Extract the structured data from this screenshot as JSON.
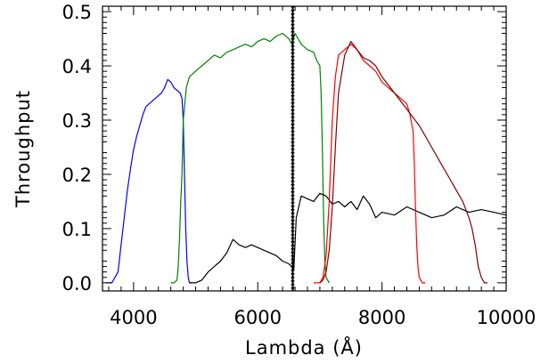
{
  "chart_data": {
    "type": "line",
    "title": "",
    "xlabel": "Lambda (Å)",
    "ylabel": "Throughput",
    "xlim": [
      3500,
      10000
    ],
    "ylim": [
      -0.015,
      0.51
    ],
    "xticks": [
      4000,
      6000,
      8000,
      10000
    ],
    "yticks": [
      0.0,
      0.1,
      0.2,
      0.3,
      0.4,
      0.5
    ],
    "xtick_labels": [
      "4000",
      "6000",
      "8000",
      "10000"
    ],
    "ytick_labels": [
      "0.0",
      "0.1",
      "0.2",
      "0.3",
      "0.4",
      "0.5"
    ],
    "grid": false,
    "legend": "none",
    "series": [
      {
        "color": "#0000ff",
        "x": [
          3550,
          3650,
          3750,
          3800,
          3850,
          3900,
          3950,
          4000,
          4050,
          4100,
          4150,
          4200,
          4250,
          4300,
          4350,
          4400,
          4450,
          4500,
          4550,
          4600,
          4650,
          4700,
          4750,
          4780,
          4800,
          4820,
          4840,
          4860,
          4880,
          4900,
          4950
        ],
        "y": [
          0.0,
          0.0,
          0.02,
          0.07,
          0.12,
          0.17,
          0.21,
          0.245,
          0.27,
          0.29,
          0.31,
          0.325,
          0.33,
          0.335,
          0.34,
          0.345,
          0.35,
          0.36,
          0.375,
          0.37,
          0.36,
          0.355,
          0.35,
          0.34,
          0.3,
          0.2,
          0.1,
          0.04,
          0.01,
          0.0,
          0.0
        ]
      },
      {
        "color": "#008000",
        "x": [
          4600,
          4650,
          4700,
          4720,
          4740,
          4760,
          4780,
          4800,
          4850,
          4900,
          5000,
          5100,
          5200,
          5300,
          5400,
          5500,
          5600,
          5700,
          5800,
          5900,
          6000,
          6100,
          6200,
          6300,
          6400,
          6500,
          6550,
          6600,
          6700,
          6800,
          6900,
          6950,
          7000,
          7020,
          7040,
          7060,
          7080,
          7100,
          7150
        ],
        "y": [
          0.0,
          0.0,
          0.005,
          0.03,
          0.08,
          0.15,
          0.2,
          0.3,
          0.36,
          0.38,
          0.39,
          0.4,
          0.41,
          0.42,
          0.415,
          0.425,
          0.43,
          0.435,
          0.44,
          0.435,
          0.445,
          0.45,
          0.445,
          0.455,
          0.46,
          0.45,
          0.44,
          0.46,
          0.44,
          0.43,
          0.425,
          0.41,
          0.4,
          0.35,
          0.25,
          0.12,
          0.04,
          0.01,
          0.0
        ]
      },
      {
        "color": "#000000",
        "x": [
          4900,
          5000,
          5100,
          5200,
          5300,
          5400,
          5500,
          5600,
          5700,
          5800,
          5900,
          6000,
          6100,
          6200,
          6300,
          6400,
          6500,
          6580,
          6620,
          6650,
          6700,
          6800,
          6900,
          7000,
          7100,
          7200,
          7300,
          7400,
          7500,
          7600,
          7700,
          7800,
          7900,
          8000,
          8200,
          8400,
          8600,
          8800,
          9000,
          9200,
          9400,
          9600,
          9800,
          10000
        ],
        "y": [
          0.0,
          0.0,
          0.005,
          0.02,
          0.03,
          0.04,
          0.055,
          0.08,
          0.07,
          0.065,
          0.07,
          0.065,
          0.06,
          0.055,
          0.05,
          0.04,
          0.035,
          0.025,
          0.12,
          0.135,
          0.16,
          0.155,
          0.15,
          0.165,
          0.16,
          0.145,
          0.15,
          0.14,
          0.15,
          0.135,
          0.16,
          0.145,
          0.12,
          0.13,
          0.125,
          0.14,
          0.13,
          0.12,
          0.125,
          0.14,
          0.13,
          0.135,
          0.13,
          0.125
        ]
      },
      {
        "color": "#ff0000",
        "x": [
          6900,
          7000,
          7050,
          7100,
          7150,
          7200,
          7250,
          7300,
          7400,
          7500,
          7600,
          7700,
          7800,
          7900,
          8000,
          8100,
          8200,
          8300,
          8400,
          8450,
          8500,
          8520,
          8540,
          8560,
          8580,
          8600,
          8650,
          8700
        ],
        "y": [
          0.0,
          0.0,
          0.01,
          0.05,
          0.15,
          0.3,
          0.38,
          0.42,
          0.43,
          0.44,
          0.43,
          0.41,
          0.4,
          0.39,
          0.37,
          0.36,
          0.35,
          0.34,
          0.33,
          0.31,
          0.28,
          0.22,
          0.14,
          0.07,
          0.03,
          0.01,
          0.0,
          0.0
        ]
      },
      {
        "color": "#800000",
        "x": [
          7000,
          7050,
          7100,
          7150,
          7200,
          7250,
          7300,
          7400,
          7500,
          7600,
          7700,
          7800,
          7900,
          8000,
          8200,
          8400,
          8600,
          8800,
          9000,
          9100,
          9200,
          9300,
          9400,
          9450,
          9500,
          9550,
          9600,
          9650,
          9700
        ],
        "y": [
          0.0,
          0.005,
          0.02,
          0.06,
          0.14,
          0.25,
          0.35,
          0.42,
          0.445,
          0.43,
          0.415,
          0.41,
          0.4,
          0.38,
          0.35,
          0.32,
          0.29,
          0.25,
          0.21,
          0.19,
          0.17,
          0.15,
          0.12,
          0.1,
          0.07,
          0.03,
          0.01,
          0.0,
          0.0
        ]
      }
    ],
    "vertical_lines": [
      {
        "x": 6563,
        "style": "solid",
        "color": "#000000"
      },
      {
        "x": 6543,
        "style": "dotted",
        "color": "#000000"
      },
      {
        "x": 6583,
        "style": "dotted",
        "color": "#000000"
      }
    ]
  }
}
